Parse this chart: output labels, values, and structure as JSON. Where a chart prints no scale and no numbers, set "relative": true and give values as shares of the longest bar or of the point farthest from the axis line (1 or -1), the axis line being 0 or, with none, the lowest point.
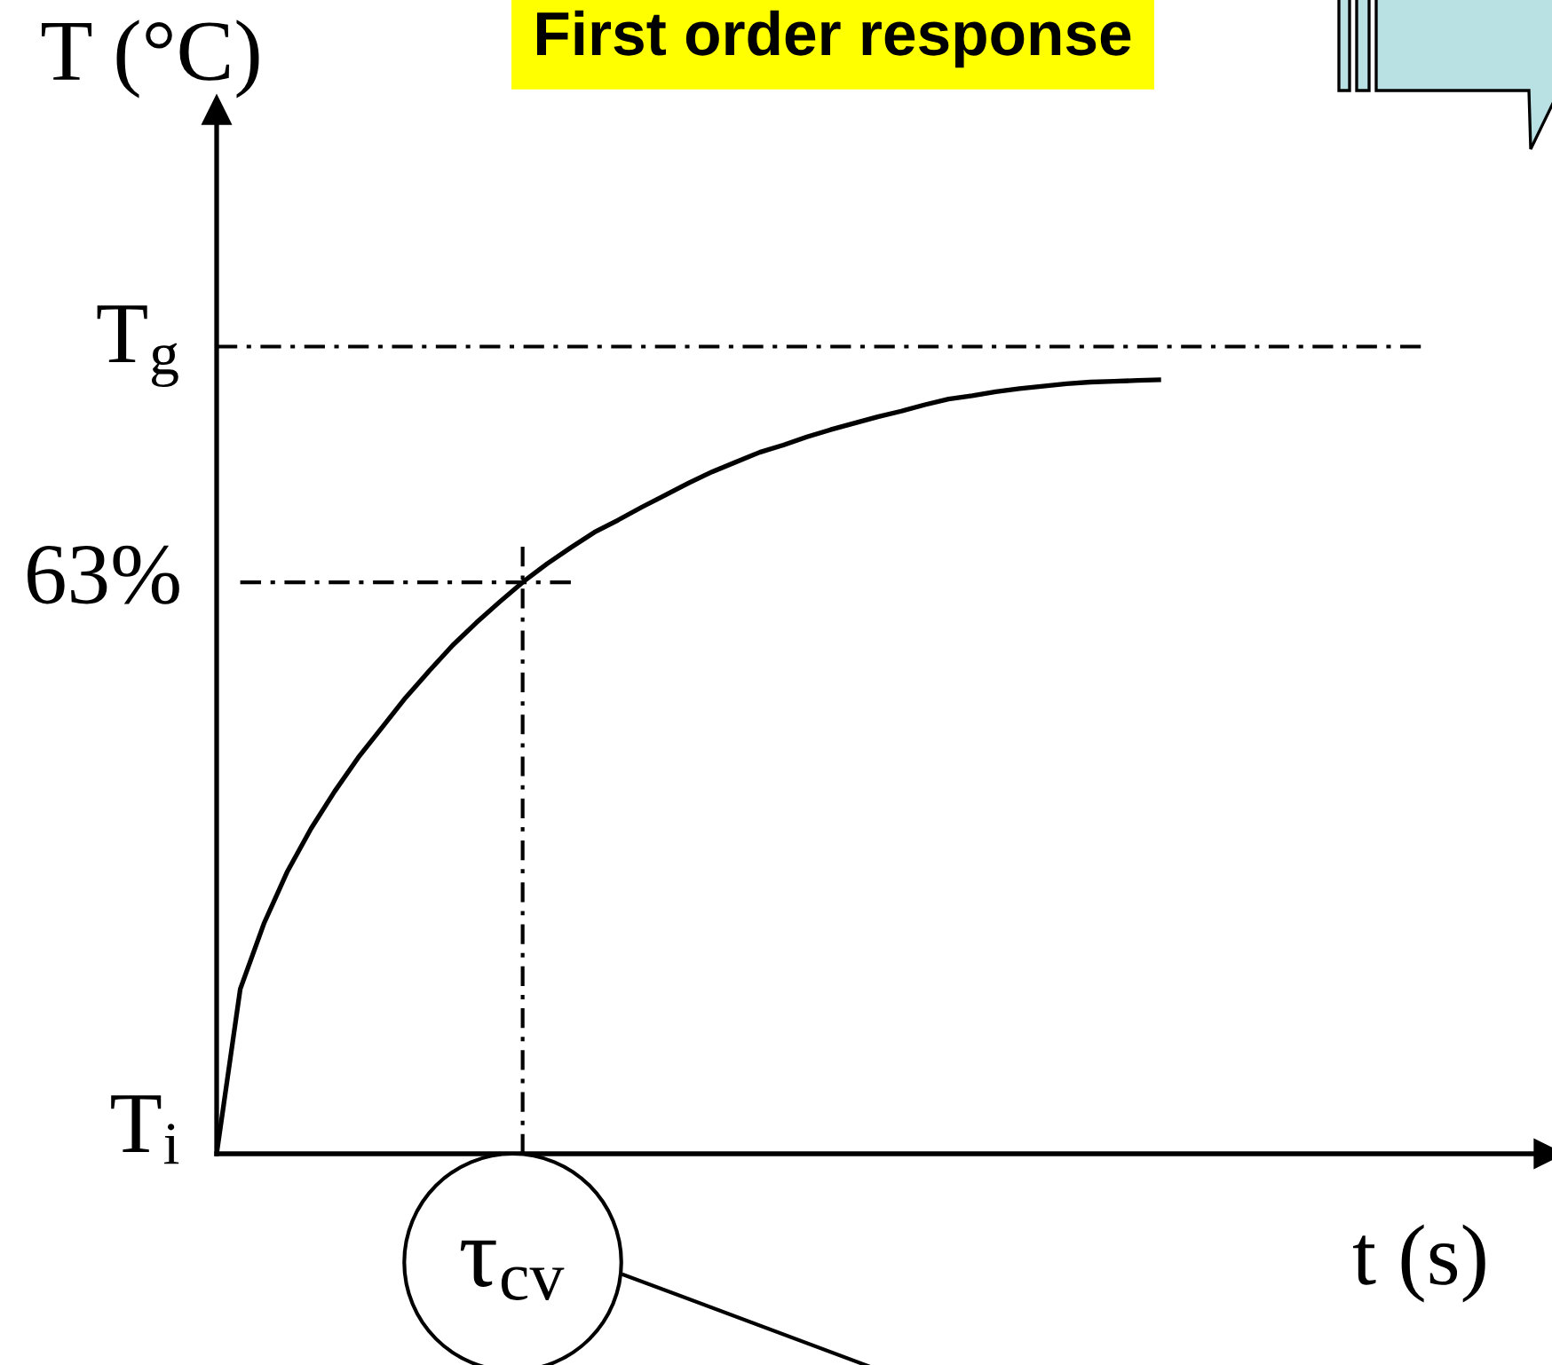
{
  "chart_data": {
    "type": "line",
    "title": "First order response",
    "xlabel": "t (s)",
    "ylabel": "T (°C)",
    "relative": true,
    "line_style": "solid",
    "categories": [
      null,
      null,
      null,
      null,
      null,
      null,
      null,
      null,
      null,
      null,
      null,
      null,
      null,
      null,
      null,
      null,
      null,
      null,
      null,
      null,
      null,
      null,
      null,
      null,
      null,
      null,
      null,
      null,
      null,
      null,
      null,
      null,
      null,
      null,
      null,
      null,
      null,
      null,
      null,
      null,
      null,
      null,
      null,
      null,
      null,
      null,
      null,
      null,
      null,
      null,
      null,
      null
    ],
    "series": [
      {
        "color": "#000000",
        "values": [
          0,
          0.204,
          0.285,
          0.35,
          0.403,
          0.449,
          0.491,
          0.528,
          0.565,
          0.598,
          0.63,
          0.658,
          0.684,
          0.709,
          0.731,
          0.751,
          0.77,
          0.785,
          0.801,
          0.816,
          0.831,
          0.845,
          0.857,
          0.869,
          0.878,
          0.888,
          0.897,
          0.905,
          0.913,
          0.92,
          0.928,
          0.935,
          0.939,
          0.944,
          0.948,
          0.951,
          0.954,
          0.956,
          0.957,
          0.958,
          0.959,
          null,
          null,
          null,
          null,
          null,
          null,
          null,
          null,
          null,
          null,
          null
        ]
      },
      {
        "name": "T$_{g}$",
        "color": "#000000",
        "line_style": "dashdot",
        "values": [
          1,
          1,
          1,
          1,
          1,
          1,
          1,
          1,
          1,
          1,
          1,
          1,
          1,
          1,
          1,
          1,
          1,
          1,
          1,
          1,
          1,
          1,
          1,
          1,
          1,
          1,
          1,
          1,
          1,
          1,
          1,
          1,
          1,
          1,
          1,
          1,
          1,
          1,
          1,
          1,
          1,
          1,
          1,
          1,
          1,
          1,
          1,
          1,
          1,
          1,
          1,
          1
        ]
      },
      {
        "name": "63%",
        "color": "#000000",
        "line_style": "dashdot",
        "values": [
          null,
          0.708,
          0.708,
          0.708,
          0.708,
          0.708,
          0.708,
          0.708,
          0.708,
          0.708,
          0.708,
          0.708,
          0.708,
          0.708,
          0.708,
          0.708,
          null,
          null,
          null,
          null,
          null,
          null,
          null,
          null,
          null,
          null,
          null,
          null,
          null,
          null,
          null,
          null,
          null,
          null,
          null,
          null,
          null,
          null,
          null,
          null,
          null,
          null,
          null,
          null,
          null,
          null,
          null,
          null,
          null,
          null,
          null,
          null
        ]
      }
    ],
    "annotations": [
      "T$_{i}$",
      "τ$_{cv}$"
    ]
  }
}
